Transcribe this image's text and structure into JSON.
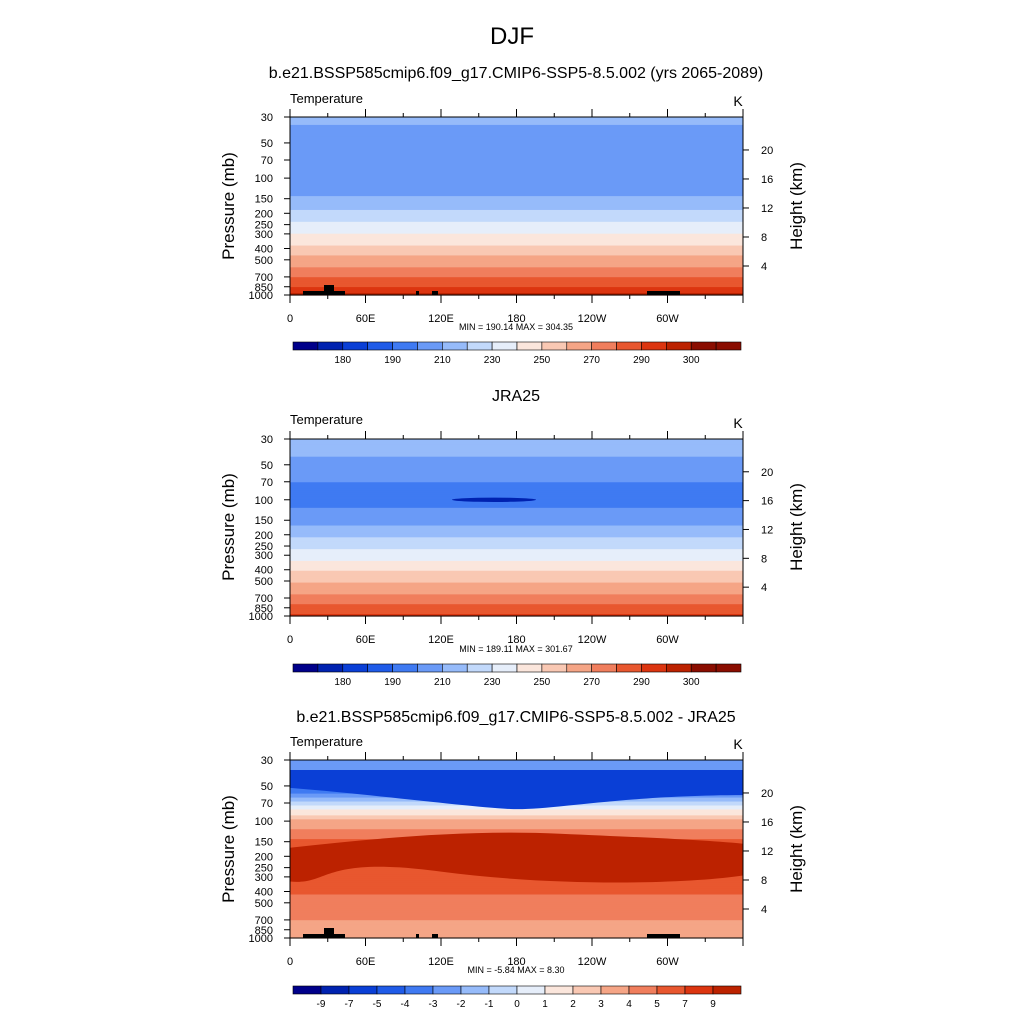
{
  "figure_title": "DJF",
  "chart_data": [
    {
      "type": "contour",
      "title": "b.e21.BSSP585cmip6.f09_g17.CMIP6-SSP5-8.5.002 (yrs 2065-2089)",
      "left_label": "Temperature",
      "units": "K",
      "ylabel": "Pressure (mb)",
      "ylabel_right": "Height (km)",
      "x_ticks": [
        "0",
        "60E",
        "120E",
        "180",
        "120W",
        "60W"
      ],
      "y_ticks": [
        "30",
        "50",
        "70",
        "100",
        "150",
        "200",
        "250",
        "300",
        "400",
        "500",
        "700",
        "850",
        "1000"
      ],
      "height_ticks": [
        "20",
        "16",
        "12",
        "8",
        "4"
      ],
      "stats": "MIN = 190.14  MAX = 304.35",
      "min": 190.14,
      "max": 304.35,
      "levels": [
        175,
        180,
        185,
        190,
        200,
        210,
        220,
        230,
        240,
        250,
        260,
        270,
        280,
        290,
        295,
        300,
        305
      ],
      "colorbar_labels": [
        "180",
        "190",
        "210",
        "230",
        "250",
        "270",
        "290",
        "300"
      ]
    },
    {
      "type": "contour",
      "title": "JRA25",
      "left_label": "Temperature",
      "units": "K",
      "ylabel": "Pressure (mb)",
      "ylabel_right": "Height (km)",
      "x_ticks": [
        "0",
        "60E",
        "120E",
        "180",
        "120W",
        "60W"
      ],
      "y_ticks": [
        "30",
        "50",
        "70",
        "100",
        "150",
        "200",
        "250",
        "300",
        "400",
        "500",
        "700",
        "850",
        "1000"
      ],
      "height_ticks": [
        "20",
        "16",
        "12",
        "8",
        "4"
      ],
      "stats": "MIN = 189.11  MAX = 301.67",
      "min": 189.11,
      "max": 301.67,
      "levels": [
        175,
        180,
        185,
        190,
        200,
        210,
        220,
        230,
        240,
        250,
        260,
        270,
        280,
        290,
        295,
        300,
        305
      ],
      "colorbar_labels": [
        "180",
        "190",
        "210",
        "230",
        "250",
        "270",
        "290",
        "300"
      ]
    },
    {
      "type": "contour",
      "title": "b.e21.BSSP585cmip6.f09_g17.CMIP6-SSP5-8.5.002 - JRA25",
      "left_label": "Temperature",
      "units": "K",
      "ylabel": "Pressure (mb)",
      "ylabel_right": "Height (km)",
      "x_ticks": [
        "0",
        "60E",
        "120E",
        "180",
        "120W",
        "60W"
      ],
      "y_ticks": [
        "30",
        "50",
        "70",
        "100",
        "150",
        "200",
        "250",
        "300",
        "400",
        "500",
        "700",
        "850",
        "1000"
      ],
      "height_ticks": [
        "20",
        "16",
        "12",
        "8",
        "4"
      ],
      "stats": "MIN =  -5.84  MAX =   8.30",
      "min": -5.84,
      "max": 8.3,
      "levels": [
        -9,
        -7,
        -5,
        -4,
        -3,
        -2,
        -1,
        0,
        1,
        2,
        3,
        4,
        5,
        7,
        9
      ],
      "colorbar_labels": [
        "-9",
        "-7",
        "-5",
        "-4",
        "-3",
        "-2",
        "-1",
        "0",
        "1",
        "2",
        "3",
        "4",
        "5",
        "7",
        "9"
      ]
    }
  ],
  "palette": [
    "#00008a",
    "#0022b0",
    "#0a3fd6",
    "#1f5be8",
    "#3f7af2",
    "#6a9af7",
    "#96bbfa",
    "#c2d9fb",
    "#e6eefa",
    "#fbe6dc",
    "#f9c8b3",
    "#f5a586",
    "#f07e5d",
    "#e8572f",
    "#dc3510",
    "#bc2200",
    "#8a0d00"
  ]
}
